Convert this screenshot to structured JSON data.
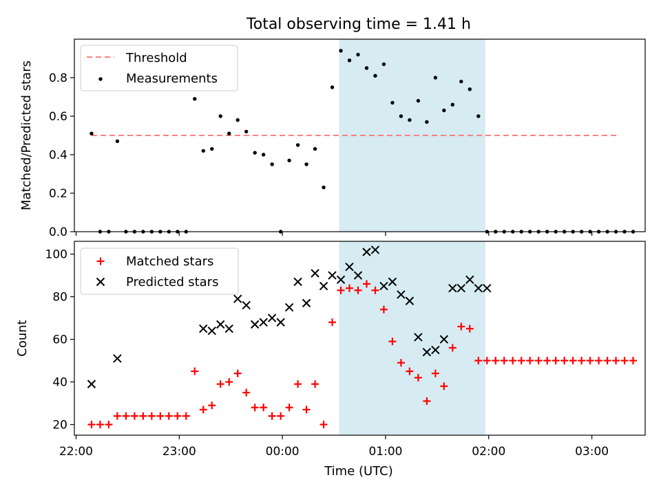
{
  "title": "Total observing time = 1.41 h",
  "colors": {
    "threshold": "#ff7f7f",
    "measurements": "#000000",
    "matched": "#ff0000",
    "predicted": "#000000",
    "shade": "#add8e6"
  },
  "chart_data": [
    {
      "type": "scatter",
      "panel": "top",
      "ylabel": "Matched/Predicted stars",
      "xlim": [
        "21:59",
        "03:31"
      ],
      "ylim": [
        0,
        1.0
      ],
      "yticks": [
        "0.0",
        "0.2",
        "0.4",
        "0.6",
        "0.8"
      ],
      "legend": [
        "Threshold",
        "Measurements"
      ],
      "legend_position": "top-left",
      "shaded_span": [
        "00:33",
        "01:58"
      ],
      "threshold": {
        "y": 0.5,
        "x": [
          "22:09",
          "03:16"
        ]
      },
      "measurements": {
        "x": [
          "22:09",
          "22:14",
          "22:19",
          "22:24",
          "22:29",
          "22:34",
          "22:39",
          "22:44",
          "22:49",
          "22:54",
          "22:59",
          "23:04",
          "23:09",
          "23:14",
          "23:19",
          "23:24",
          "23:29",
          "23:34",
          "23:39",
          "23:44",
          "23:49",
          "23:54",
          "23:59",
          "00:04",
          "00:09",
          "00:14",
          "00:19",
          "00:24",
          "00:29",
          "00:34",
          "00:39",
          "00:44",
          "00:49",
          "00:54",
          "00:59",
          "01:04",
          "01:09",
          "01:14",
          "01:19",
          "01:24",
          "01:29",
          "01:34",
          "01:39",
          "01:44",
          "01:49",
          "01:54",
          "01:59",
          "02:04",
          "02:09",
          "02:14",
          "02:19",
          "02:24",
          "02:29",
          "02:34",
          "02:39",
          "02:44",
          "02:49",
          "02:54",
          "02:59",
          "03:04",
          "03:09",
          "03:14",
          "03:19",
          "03:24"
        ],
        "y": [
          0.51,
          0.0,
          0.0,
          0.47,
          0.0,
          0.0,
          0.0,
          0.0,
          0.0,
          0.0,
          0.0,
          0.0,
          0.69,
          0.42,
          0.43,
          0.6,
          0.51,
          0.58,
          0.52,
          0.41,
          0.4,
          0.35,
          0.0,
          0.37,
          0.45,
          0.35,
          0.43,
          0.23,
          0.75,
          0.94,
          0.89,
          0.92,
          0.85,
          0.81,
          0.87,
          0.67,
          0.6,
          0.58,
          0.68,
          0.57,
          0.8,
          0.63,
          0.66,
          0.78,
          0.74,
          0.6,
          0.0,
          0.0,
          0.0,
          0.0,
          0.0,
          0.0,
          0.0,
          0.0,
          0.0,
          0.0,
          0.0,
          0.0,
          0.0,
          0.0,
          0.0,
          0.0,
          0.0,
          0.0
        ]
      }
    },
    {
      "type": "scatter",
      "panel": "bottom",
      "xlabel": "Time (UTC)",
      "ylabel": "Count",
      "xlim": [
        "21:59",
        "03:31"
      ],
      "ylim": [
        15,
        106
      ],
      "xticks": [
        "22:00",
        "23:00",
        "00:00",
        "01:00",
        "02:00",
        "03:00"
      ],
      "yticks": [
        "20",
        "40",
        "60",
        "80",
        "100"
      ],
      "legend": [
        "Matched stars",
        "Predicted stars"
      ],
      "legend_position": "top-left",
      "shaded_span": [
        "00:33",
        "01:58"
      ],
      "series": [
        {
          "name": "Matched stars",
          "marker": "+",
          "x": [
            "22:09",
            "22:14",
            "22:19",
            "22:24",
            "22:29",
            "22:34",
            "22:39",
            "22:44",
            "22:49",
            "22:54",
            "22:59",
            "23:04",
            "23:09",
            "23:14",
            "23:19",
            "23:24",
            "23:29",
            "23:34",
            "23:39",
            "23:44",
            "23:49",
            "23:54",
            "23:59",
            "00:04",
            "00:09",
            "00:14",
            "00:19",
            "00:24",
            "00:29",
            "00:34",
            "00:39",
            "00:44",
            "00:49",
            "00:54",
            "00:59",
            "01:04",
            "01:09",
            "01:14",
            "01:19",
            "01:24",
            "01:29",
            "01:34",
            "01:39",
            "01:44",
            "01:49",
            "01:54",
            "01:59",
            "02:04",
            "02:09",
            "02:14",
            "02:19",
            "02:24",
            "02:29",
            "02:34",
            "02:39",
            "02:44",
            "02:49",
            "02:54",
            "02:59",
            "03:04",
            "03:09",
            "03:14",
            "03:19",
            "03:24"
          ],
          "y": [
            20,
            20,
            20,
            24,
            24,
            24,
            24,
            24,
            24,
            24,
            24,
            24,
            45,
            27,
            29,
            39,
            40,
            44,
            35,
            28,
            28,
            24,
            24,
            28,
            39,
            27,
            39,
            20,
            68,
            83,
            84,
            83,
            86,
            83,
            74,
            59,
            49,
            45,
            42,
            31,
            44,
            38,
            56,
            66,
            65,
            50,
            50,
            50,
            50,
            50,
            50,
            50,
            50,
            50,
            50,
            50,
            50,
            50,
            50,
            50,
            50,
            50,
            50,
            50
          ]
        },
        {
          "name": "Predicted stars",
          "marker": "x",
          "x": [
            "22:09",
            "22:24",
            "23:14",
            "23:19",
            "23:24",
            "23:29",
            "23:34",
            "23:39",
            "23:44",
            "23:49",
            "23:54",
            "23:59",
            "00:04",
            "00:09",
            "00:14",
            "00:19",
            "00:24",
            "00:29",
            "00:34",
            "00:39",
            "00:44",
            "00:49",
            "00:54",
            "00:59",
            "01:04",
            "01:09",
            "01:14",
            "01:19",
            "01:24",
            "01:29",
            "01:34",
            "01:39",
            "01:44",
            "01:49",
            "01:54",
            "01:59"
          ],
          "y": [
            39,
            51,
            65,
            64,
            67,
            65,
            79,
            76,
            67,
            68,
            70,
            68,
            75,
            87,
            77,
            91,
            85,
            90,
            88,
            94,
            90,
            101,
            102,
            85,
            87,
            81,
            78,
            61,
            54,
            55,
            60,
            84,
            84,
            88,
            84,
            84
          ]
        }
      ]
    }
  ]
}
